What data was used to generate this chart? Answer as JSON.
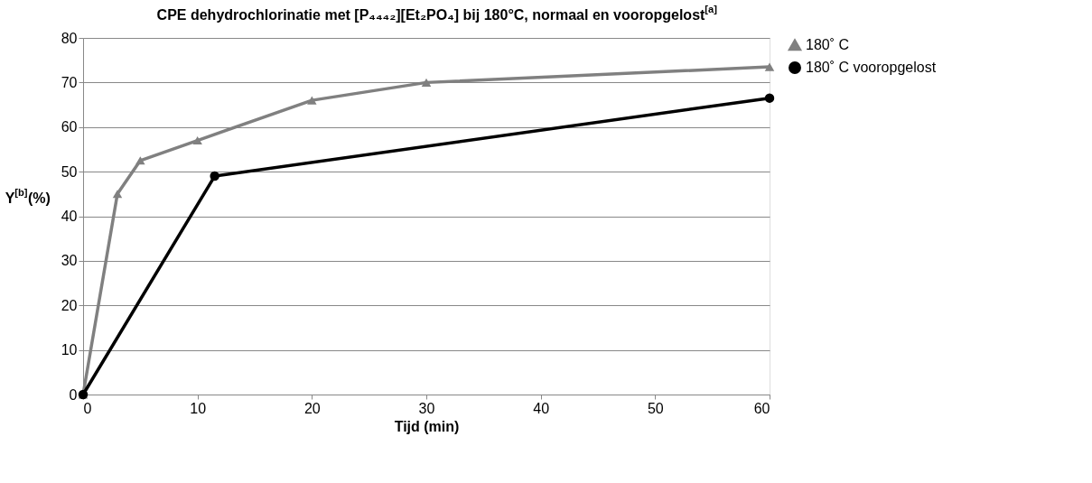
{
  "chart_data": {
    "type": "line",
    "title": "CPE dehydrochlorinatie met [P₄₄₄₂][Et₂PO₄] bij 180°C, normaal en vooropgelost$^{[a]}$",
    "xlabel": "Tijd (min)",
    "ylabel": "Y$^{[b]}$(%)",
    "xlim": [
      0,
      60
    ],
    "xticks": [
      0,
      10,
      20,
      30,
      40,
      50,
      60
    ],
    "ylim": [
      0,
      80
    ],
    "yticks": [
      0,
      10,
      20,
      30,
      40,
      50,
      60,
      70,
      80
    ],
    "grid": "y",
    "legend": "right",
    "line_style": "solid",
    "series": [
      {
        "name": "180˚ C",
        "color": "#808080",
        "marker": "triangle",
        "x": [
          0,
          3,
          5,
          10,
          20,
          30,
          60
        ],
        "values": [
          0,
          45,
          52.5,
          57,
          66,
          70,
          73.5
        ]
      },
      {
        "name": "180˚ C vooropgelost",
        "color": "#000000",
        "marker": "circle",
        "x": [
          0,
          11.5,
          60
        ],
        "values": [
          0,
          49,
          66.5
        ]
      }
    ]
  }
}
